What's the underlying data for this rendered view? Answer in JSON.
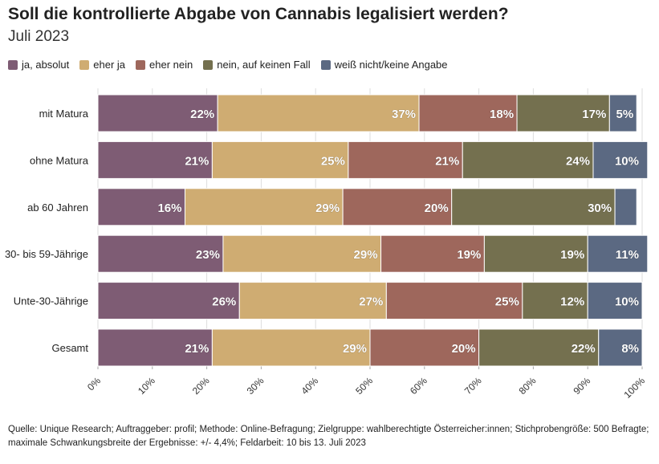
{
  "title": "Soll die kontrollierte Abgabe von Cannabis legalisiert werden?",
  "subtitle": "Juli 2023",
  "footer": "Quelle: Unique Research; Auftraggeber: profil; Methode: Online-Befragung; Zielgruppe: wahlberechtigte Österreicher:innen; Stichprobengröße: 500 Befragte; maximale Schwankungsbreite der Ergebnisse: +/- 4,4%; Feldarbeit: 10 bis 13. Juli 2023",
  "chart_data": {
    "type": "bar",
    "orientation": "horizontal",
    "stacked": true,
    "categories": [
      "mit Matura",
      "ohne Matura",
      "ab 60 Jahren",
      "30- bis 59-Jährige",
      "Unte-30-Jährige",
      "Gesamt"
    ],
    "series": [
      {
        "name": "ja, absolut",
        "color": "#7e5c74",
        "values": [
          22,
          21,
          16,
          23,
          26,
          21
        ],
        "labels": [
          "22%",
          "21%",
          "16%",
          "23%",
          "26%",
          "21%"
        ]
      },
      {
        "name": "eher ja",
        "color": "#cfac72",
        "values": [
          37,
          25,
          29,
          29,
          27,
          29
        ],
        "labels": [
          "37%",
          "25%",
          "29%",
          "29%",
          "27%",
          "29%"
        ]
      },
      {
        "name": "eher nein",
        "color": "#9e675c",
        "values": [
          18,
          21,
          20,
          19,
          25,
          20
        ],
        "labels": [
          "18%",
          "21%",
          "20%",
          "19%",
          "25%",
          "20%"
        ]
      },
      {
        "name": "nein, auf keinen Fall",
        "color": "#74704f",
        "values": [
          17,
          24,
          30,
          19,
          12,
          22
        ],
        "labels": [
          "17%",
          "24%",
          "30%",
          "19%",
          "12%",
          "22%"
        ]
      },
      {
        "name": "weiß nicht/keine Angabe",
        "color": "#5b6982",
        "values": [
          5,
          10,
          4,
          11,
          10,
          8
        ],
        "labels": [
          "5%",
          "10%",
          "",
          "11%",
          "10%",
          "8%"
        ]
      }
    ],
    "xlim": [
      0,
      100
    ],
    "xticks": [
      "0%",
      "10%",
      "20%",
      "30%",
      "40%",
      "50%",
      "60%",
      "70%",
      "80%",
      "90%",
      "100%"
    ],
    "grid": true,
    "legend_position": "top-left"
  }
}
